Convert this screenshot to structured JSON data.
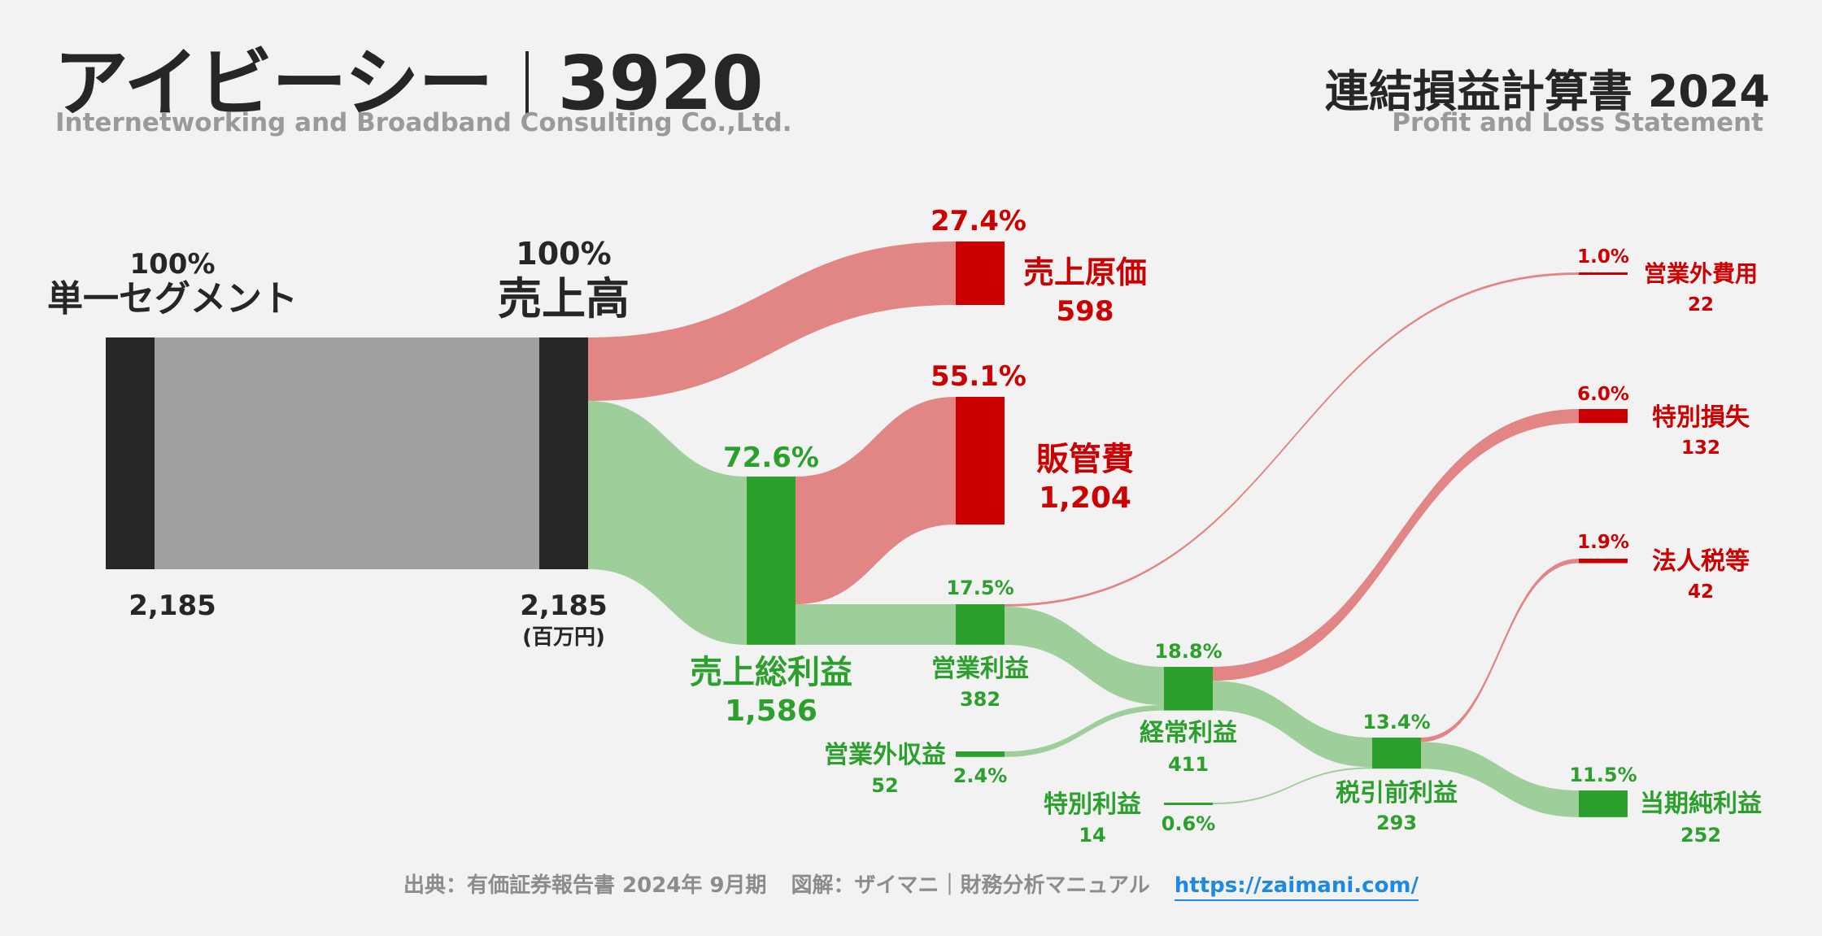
{
  "header": {
    "company_name": "アイビーシー",
    "ticker": "3920",
    "company_en": "Internetworking and Broadband Consulting Co.,Ltd.",
    "statement_title": "連結損益計算書 2024",
    "statement_en": "Profit and Loss Statement"
  },
  "footer": {
    "source": "出典：有価証券報告書 2024年 9月期",
    "credit": "図解：ザイマニ｜財務分析マニュアル",
    "link": "https://zaimani.com/"
  },
  "colors": {
    "dark": "#262626",
    "gray_flow": "#a0a0a0",
    "profit": "#2ca02c",
    "profit_flow": "#9ecf9b",
    "cost": "#cc0000",
    "cost_flow": "#e28585"
  },
  "chart_data": {
    "type": "sankey",
    "unit_label": "(百万円)",
    "nodes": [
      {
        "id": "segment",
        "label": "単一セグメント",
        "value": 2185,
        "value_label": "2,185",
        "pct": "100%",
        "kind": "neutral"
      },
      {
        "id": "revenue",
        "label": "売上高",
        "value": 2185,
        "value_label": "2,185",
        "pct": "100%",
        "kind": "neutral"
      },
      {
        "id": "cogs",
        "label": "売上原価",
        "value": 598,
        "value_label": "598",
        "pct": "27.4%",
        "kind": "cost"
      },
      {
        "id": "gross",
        "label": "売上総利益",
        "value": 1586,
        "value_label": "1,586",
        "pct": "72.6%",
        "kind": "profit"
      },
      {
        "id": "sga",
        "label": "販管費",
        "value": 1204,
        "value_label": "1,204",
        "pct": "55.1%",
        "kind": "cost"
      },
      {
        "id": "op",
        "label": "営業利益",
        "value": 382,
        "value_label": "382",
        "pct": "17.5%",
        "kind": "profit"
      },
      {
        "id": "nonop_inc",
        "label": "営業外収益",
        "value": 52,
        "value_label": "52",
        "pct": "2.4%",
        "kind": "profit"
      },
      {
        "id": "nonop_exp",
        "label": "営業外費用",
        "value": 22,
        "value_label": "22",
        "pct": "1.0%",
        "kind": "cost"
      },
      {
        "id": "ordinary",
        "label": "経常利益",
        "value": 411,
        "value_label": "411",
        "pct": "18.8%",
        "kind": "profit"
      },
      {
        "id": "extra_inc",
        "label": "特別利益",
        "value": 14,
        "value_label": "14",
        "pct": "0.6%",
        "kind": "profit"
      },
      {
        "id": "extra_loss",
        "label": "特別損失",
        "value": 132,
        "value_label": "132",
        "pct": "6.0%",
        "kind": "cost"
      },
      {
        "id": "pretax",
        "label": "税引前利益",
        "value": 293,
        "value_label": "293",
        "pct": "13.4%",
        "kind": "profit"
      },
      {
        "id": "tax",
        "label": "法人税等",
        "value": 42,
        "value_label": "42",
        "pct": "1.9%",
        "kind": "cost"
      },
      {
        "id": "net",
        "label": "当期純利益",
        "value": 252,
        "value_label": "252",
        "pct": "11.5%",
        "kind": "profit"
      }
    ],
    "links": [
      {
        "source": "segment",
        "target": "revenue",
        "value": 2185
      },
      {
        "source": "revenue",
        "target": "cogs",
        "value": 598
      },
      {
        "source": "revenue",
        "target": "gross",
        "value": 1586
      },
      {
        "source": "gross",
        "target": "sga",
        "value": 1204
      },
      {
        "source": "gross",
        "target": "op",
        "value": 382
      },
      {
        "source": "op",
        "target": "nonop_exp",
        "value": 22
      },
      {
        "source": "op",
        "target": "ordinary",
        "value": 360
      },
      {
        "source": "nonop_inc",
        "target": "ordinary",
        "value": 52
      },
      {
        "source": "ordinary",
        "target": "extra_loss",
        "value": 132
      },
      {
        "source": "ordinary",
        "target": "pretax",
        "value": 279
      },
      {
        "source": "extra_inc",
        "target": "pretax",
        "value": 14
      },
      {
        "source": "pretax",
        "target": "tax",
        "value": 42
      },
      {
        "source": "pretax",
        "target": "net",
        "value": 252
      }
    ]
  }
}
